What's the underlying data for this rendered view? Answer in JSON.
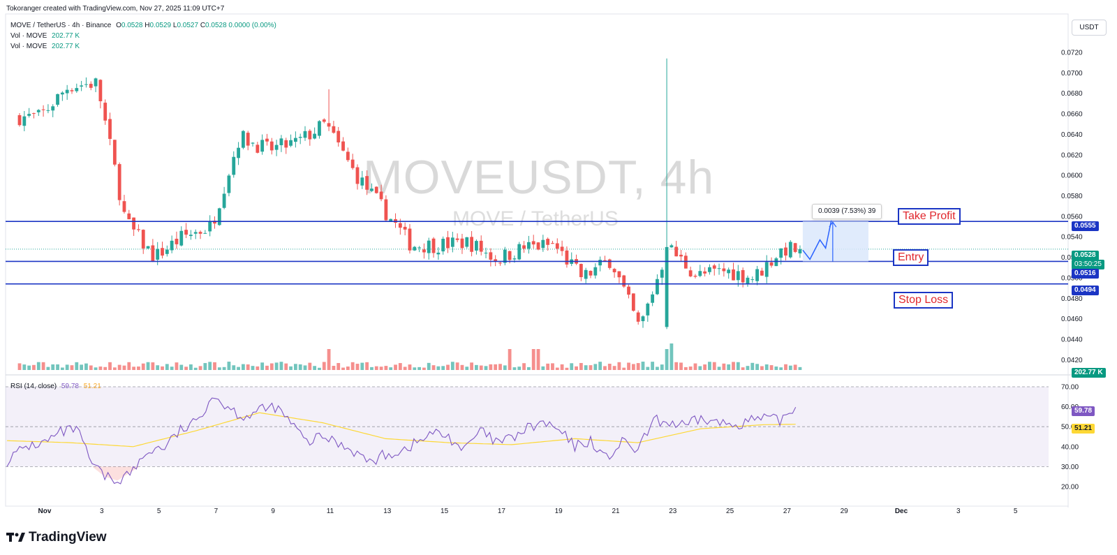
{
  "header": {
    "created_by": "Tokoranger created with TradingView.com, Nov 27, 2025 11:09 UTC+7",
    "symbol_line": "MOVE / TetherUS · 4h · Binance",
    "ohlc": {
      "o_label": "O",
      "o": "0.0528",
      "h_label": "H",
      "h": "0.0529",
      "l_label": "L",
      "l": "0.0527",
      "c_label": "C",
      "c": "0.0528",
      "change": "0.0000 (0.00%)"
    },
    "vol1_label": "Vol · MOVE",
    "vol1_value": "202.77 K",
    "vol2_label": "Vol · MOVE",
    "vol2_value": "202.77 K",
    "currency_button": "USDT"
  },
  "watermark": {
    "symbol": "MOVEUSDT, 4h",
    "name": "MOVE / TetherUS"
  },
  "annotations": {
    "take_profit": "Take Profit",
    "entry": "Entry",
    "stop_loss": "Stop Loss",
    "measure": "0.0039 (7.53%) 39"
  },
  "price_tags": {
    "take_profit": "0.0555",
    "last": "0.0528",
    "countdown": "03:50:25",
    "entry": "0.0516",
    "stop_loss": "0.0494",
    "volume": "202.77 K",
    "rsi": "59.78",
    "rsi_ma": "51.21"
  },
  "rsi_legend": {
    "label": "RSI (14, close)",
    "rsi": "59.78",
    "ma": "51.21"
  },
  "price_axis_labels": [
    "0.0720",
    "0.0700",
    "0.0680",
    "0.0660",
    "0.0640",
    "0.0620",
    "0.0600",
    "0.0580",
    "0.0560",
    "0.0540",
    "0.0520",
    "0.0500",
    "0.0480",
    "0.0460",
    "0.0440",
    "0.0420"
  ],
  "rsi_axis_labels": [
    "70.00",
    "60.00",
    "50.00",
    "40.00",
    "30.00",
    "20.00"
  ],
  "time_axis_labels": [
    "Nov",
    "3",
    "5",
    "7",
    "9",
    "11",
    "13",
    "15",
    "17",
    "19",
    "21",
    "23",
    "25",
    "27",
    "29",
    "Dec",
    "3",
    "5"
  ],
  "logo_text": "TradingView",
  "colors": {
    "up": "#26a69a",
    "down": "#ef5350",
    "level_line": "#1b35c4",
    "rsi_line": "#7e57c2",
    "rsi_ma": "#fdd835",
    "measure_fill": "#dbe7fb"
  },
  "chart_data": [
    {
      "type": "candlestick",
      "title": "MOVE / TetherUS · 4h · Binance",
      "x_axis": [
        "Nov",
        "3",
        "5",
        "7",
        "9",
        "11",
        "13",
        "15",
        "17",
        "19",
        "21",
        "23",
        "25",
        "27",
        "29",
        "Dec",
        "3",
        "5"
      ],
      "ylim": [
        0.0415,
        0.0728
      ],
      "levels": {
        "take_profit": 0.0555,
        "entry": 0.0516,
        "stop_loss": 0.0494
      },
      "last_close": 0.0528,
      "close_path_keypoints": [
        [
          "Nov 1",
          0.0657
        ],
        [
          "Nov 2",
          0.0687
        ],
        [
          "Nov 3",
          0.069
        ],
        [
          "Nov 4",
          0.0555
        ],
        [
          "Nov 5",
          0.052
        ],
        [
          "Nov 6",
          0.054
        ],
        [
          "Nov 7",
          0.055
        ],
        [
          "Nov 8",
          0.0638
        ],
        [
          "Nov 9",
          0.0625
        ],
        [
          "Nov 10",
          0.0632
        ],
        [
          "Nov 11",
          0.065
        ],
        [
          "Nov 12",
          0.0603
        ],
        [
          "Nov 13",
          0.0568
        ],
        [
          "Nov 14",
          0.0532
        ],
        [
          "Nov 15",
          0.0532
        ],
        [
          "Nov 16",
          0.0535
        ],
        [
          "Nov 17",
          0.0518
        ],
        [
          "Nov 18",
          0.053
        ],
        [
          "Nov 19",
          0.0532
        ],
        [
          "Nov 20",
          0.05
        ],
        [
          "Nov 21",
          0.0518
        ],
        [
          "Nov 22",
          0.045
        ],
        [
          "Nov 23",
          0.053
        ],
        [
          "Nov 24",
          0.0502
        ],
        [
          "Nov 25",
          0.0507
        ],
        [
          "Nov 26",
          0.05
        ],
        [
          "Nov 27",
          0.0528
        ]
      ]
    },
    {
      "type": "bar",
      "title": "Vol · MOVE",
      "last_value": "202.77 K"
    },
    {
      "type": "line",
      "title": "RSI (14, close)",
      "ylim": [
        15,
        75
      ],
      "bands": [
        30,
        50,
        70
      ],
      "series": [
        {
          "name": "RSI",
          "last": 59.78
        },
        {
          "name": "MA",
          "last": 51.21
        }
      ],
      "rsi_keypoints": [
        [
          0,
          33
        ],
        [
          6,
          40
        ],
        [
          12,
          42
        ],
        [
          17,
          47
        ],
        [
          22,
          49
        ],
        [
          27,
          31
        ],
        [
          31,
          25
        ],
        [
          35,
          23
        ],
        [
          40,
          28
        ],
        [
          45,
          38
        ],
        [
          50,
          40
        ],
        [
          55,
          48
        ],
        [
          60,
          52
        ],
        [
          65,
          66
        ],
        [
          70,
          60
        ],
        [
          75,
          55
        ],
        [
          80,
          58
        ],
        [
          85,
          60
        ],
        [
          90,
          52
        ],
        [
          95,
          42
        ],
        [
          100,
          45
        ],
        [
          105,
          42
        ],
        [
          110,
          38
        ],
        [
          115,
          32
        ],
        [
          120,
          36
        ],
        [
          125,
          38
        ],
        [
          130,
          42
        ],
        [
          135,
          47
        ],
        [
          140,
          45
        ],
        [
          145,
          38
        ],
        [
          150,
          48
        ],
        [
          155,
          42
        ],
        [
          160,
          44
        ],
        [
          165,
          49
        ],
        [
          170,
          52
        ],
        [
          175,
          48
        ],
        [
          180,
          40
        ],
        [
          185,
          43
        ],
        [
          190,
          34
        ],
        [
          195,
          42
        ],
        [
          200,
          38
        ],
        [
          205,
          53
        ],
        [
          210,
          52
        ],
        [
          215,
          50
        ],
        [
          220,
          54
        ],
        [
          225,
          52
        ],
        [
          230,
          51
        ],
        [
          235,
          53
        ],
        [
          240,
          54
        ],
        [
          245,
          53
        ],
        [
          250,
          59.78
        ]
      ],
      "ma_keypoints": [
        [
          0,
          43
        ],
        [
          20,
          42
        ],
        [
          40,
          40
        ],
        [
          60,
          48
        ],
        [
          80,
          57
        ],
        [
          100,
          52
        ],
        [
          120,
          44
        ],
        [
          140,
          42
        ],
        [
          160,
          41
        ],
        [
          180,
          44
        ],
        [
          200,
          42
        ],
        [
          220,
          49
        ],
        [
          240,
          51
        ],
        [
          250,
          51.21
        ]
      ]
    }
  ]
}
